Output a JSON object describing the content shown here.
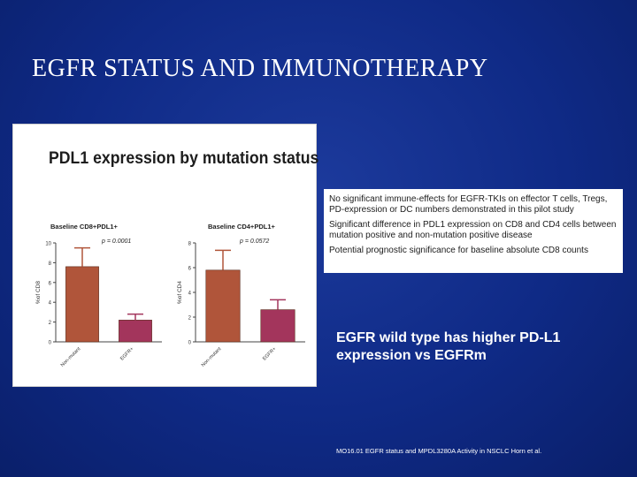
{
  "slide": {
    "title": "EGFR STATUS AND IMMUNOTHERAPY",
    "figure_title": "PDL1 expression by mutation status",
    "notes": [
      "No significant immune-effects for EGFR-TKIs on effector T cells, Tregs, PD-expression or DC numbers demonstrated in this pilot study",
      "Significant difference in PDL1 expression on CD8 and CD4 cells between mutation positive and non-mutation positive disease",
      "Potential prognostic significance for baseline absolute CD8 counts"
    ],
    "callout": "EGFR wild type has higher PD-L1 expression vs EGFRm",
    "citation": "MO16.01 EGFR status and MPDL3280A Activity in NSCLC Horn et al."
  },
  "colors": {
    "background": "#0f2a86",
    "bar_wildtype": "#b0553a",
    "bar_mutant": "#a3355c"
  },
  "chart_data": [
    {
      "type": "bar",
      "title": "Baseline CD8+PDL1+",
      "annotation": "p = 0.0001",
      "ylabel": "%of CD8",
      "ylim": [
        0,
        10
      ],
      "yticks": [
        0,
        2,
        4,
        6,
        8,
        10
      ],
      "categories": [
        "Non-mutant",
        "EGFR+"
      ],
      "values": [
        7.6,
        2.2
      ],
      "error": [
        1.9,
        0.6
      ],
      "colors": [
        "#b0553a",
        "#a3355c"
      ]
    },
    {
      "type": "bar",
      "title": "Baseline CD4+PDL1+",
      "annotation": "p = 0.0572",
      "ylabel": "%of CD4",
      "ylim": [
        0,
        8
      ],
      "yticks": [
        0,
        2,
        4,
        6,
        8
      ],
      "categories": [
        "Non-mutant",
        "EGFR+"
      ],
      "values": [
        5.8,
        2.6
      ],
      "error": [
        1.6,
        0.8
      ],
      "colors": [
        "#b0553a",
        "#a3355c"
      ]
    }
  ]
}
